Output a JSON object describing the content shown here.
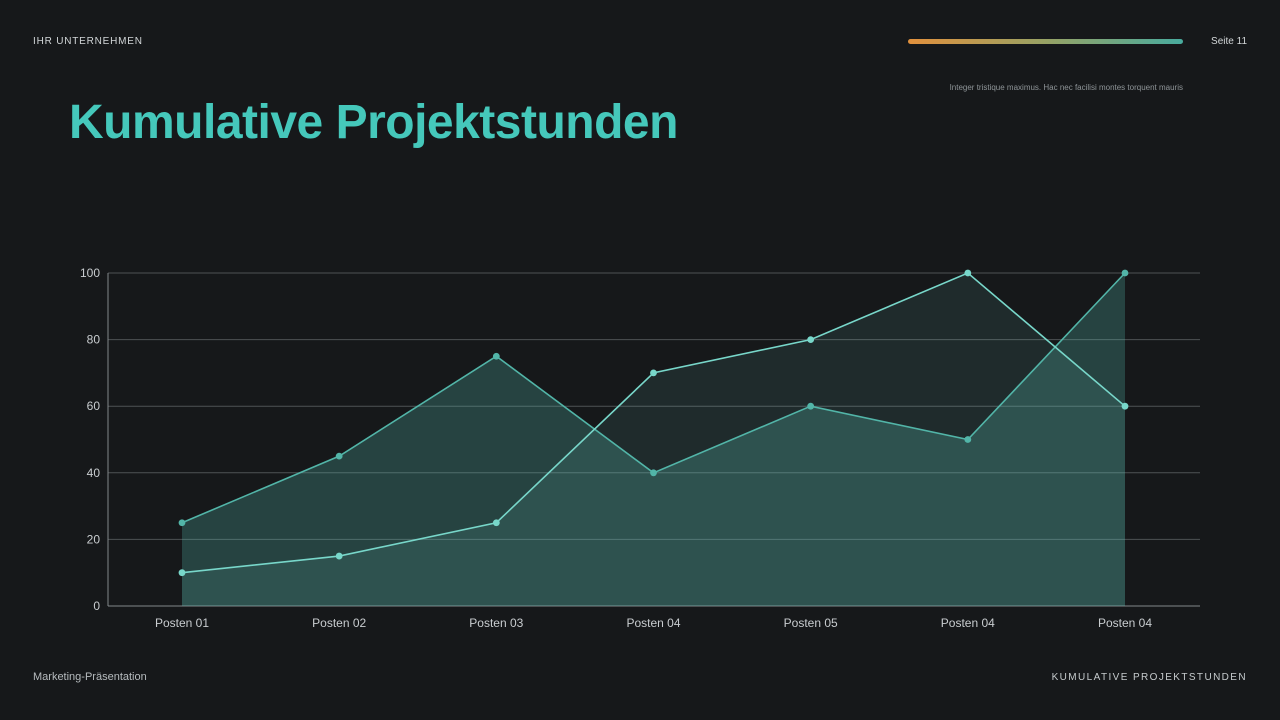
{
  "header": {
    "company": "IHR UNTERNEHMEN",
    "page": "Seite 11"
  },
  "subtitle": "Integer tristique maximus. Hac nec facilisi montes torquent mauris",
  "title": "Kumulative Projektstunden",
  "footer": {
    "left": "Marketing-Präsentation",
    "right": "KUMULATIVE PROJEKTSTUNDEN"
  },
  "colors": {
    "background": "#16181a",
    "accent": "#45c8bb",
    "text_light": "#c9cdd0",
    "text_muted": "#8f9598",
    "grid": "#4e5254",
    "axis": "#83888b",
    "gradient_bar": [
      "#e2913d",
      "#97a265",
      "#48ab9e"
    ]
  },
  "chart_data": {
    "type": "line",
    "title": "Kumulative Projektstunden",
    "categories": [
      "Posten 01",
      "Posten 02",
      "Posten 03",
      "Posten 04",
      "Posten 05",
      "Posten 04",
      "Posten 04"
    ],
    "series": [
      {
        "id": "series-1",
        "values": [
          25,
          45,
          75,
          40,
          60,
          50,
          100
        ],
        "color": "#52b5a8",
        "area": true,
        "area_opacity": 0.28
      },
      {
        "id": "series-2",
        "values": [
          10,
          15,
          25,
          70,
          80,
          100,
          60
        ],
        "color": "#78d7ca",
        "area": true,
        "area_opacity": 0.1
      }
    ],
    "xlabel": "",
    "ylabel": "",
    "ylim": [
      0,
      100
    ],
    "yticks": [
      0,
      20,
      40,
      60,
      80,
      100
    ],
    "grid": true,
    "legend": false
  }
}
